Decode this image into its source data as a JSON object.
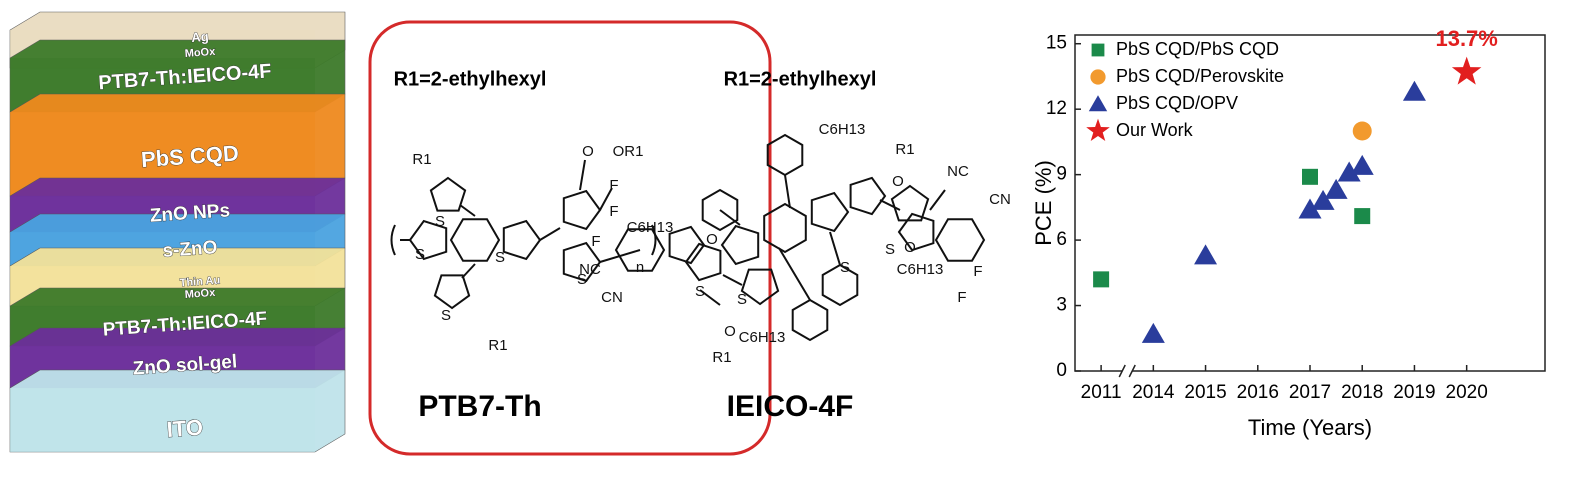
{
  "device_stack": {
    "layers": [
      "Ag",
      "MoOx",
      "PTB7-Th:IEICO-4F",
      "PbS CQD",
      "ZnO NPs",
      "s-ZnO",
      "Thin Au",
      "MoOx",
      "PTB7-Th:IEICO-4F",
      "ZnO sol-gel",
      "ITO"
    ]
  },
  "molecules": [
    {
      "name": "PTB7-Th",
      "substituent": "R1=2-ethylhexyl",
      "atoms": [
        "R1",
        "S",
        "S",
        "S",
        "S",
        "S",
        "O",
        "OR1",
        "F",
        "n",
        "R1"
      ]
    },
    {
      "name": "IEICO-4F",
      "substituent": "R1=2-ethylhexyl",
      "atoms": [
        "C6H13",
        "R1",
        "O",
        "NC",
        "CN",
        "F",
        "F",
        "C6H13",
        "O",
        "S",
        "S",
        "S",
        "S",
        "NC",
        "CN",
        "O",
        "C6H13",
        "R1",
        "O",
        "C6H13",
        "F",
        "F"
      ]
    }
  ],
  "chart_data": {
    "type": "scatter",
    "xlabel": "Time (Years)",
    "ylabel": "PCE (%)",
    "xlim": [
      2010.5,
      2021.5
    ],
    "xbreak": [
      2011.5,
      2013.5
    ],
    "xticks": [
      2011,
      2014,
      2015,
      2016,
      2017,
      2018,
      2019,
      2020
    ],
    "ylim": [
      0,
      15.4
    ],
    "yticks": [
      0,
      3,
      6,
      9,
      12,
      15
    ],
    "legend": "upper left",
    "series": [
      {
        "name": "PbS CQD/PbS CQD",
        "color": "#1b8a4a",
        "marker": "square",
        "x": [
          2011,
          2017,
          2018
        ],
        "values": [
          4.2,
          8.9,
          7.1
        ]
      },
      {
        "name": "PbS CQD/Perovskite",
        "color": "#f29a2e",
        "marker": "circle",
        "x": [
          2018
        ],
        "values": [
          11.0
        ]
      },
      {
        "name": "PbS CQD/OPV",
        "color": "#2a3d9c",
        "marker": "triangle",
        "x": [
          2014,
          2015,
          2017,
          2017.25,
          2017.5,
          2017.75,
          2018,
          2019
        ],
        "values": [
          1.7,
          5.3,
          7.4,
          7.8,
          8.3,
          9.1,
          9.4,
          12.8
        ]
      },
      {
        "name": "Our Work",
        "color": "#e21f1f",
        "marker": "star",
        "x": [
          2020
        ],
        "values": [
          13.7
        ],
        "value_labels": [
          "13.7%"
        ]
      }
    ]
  }
}
